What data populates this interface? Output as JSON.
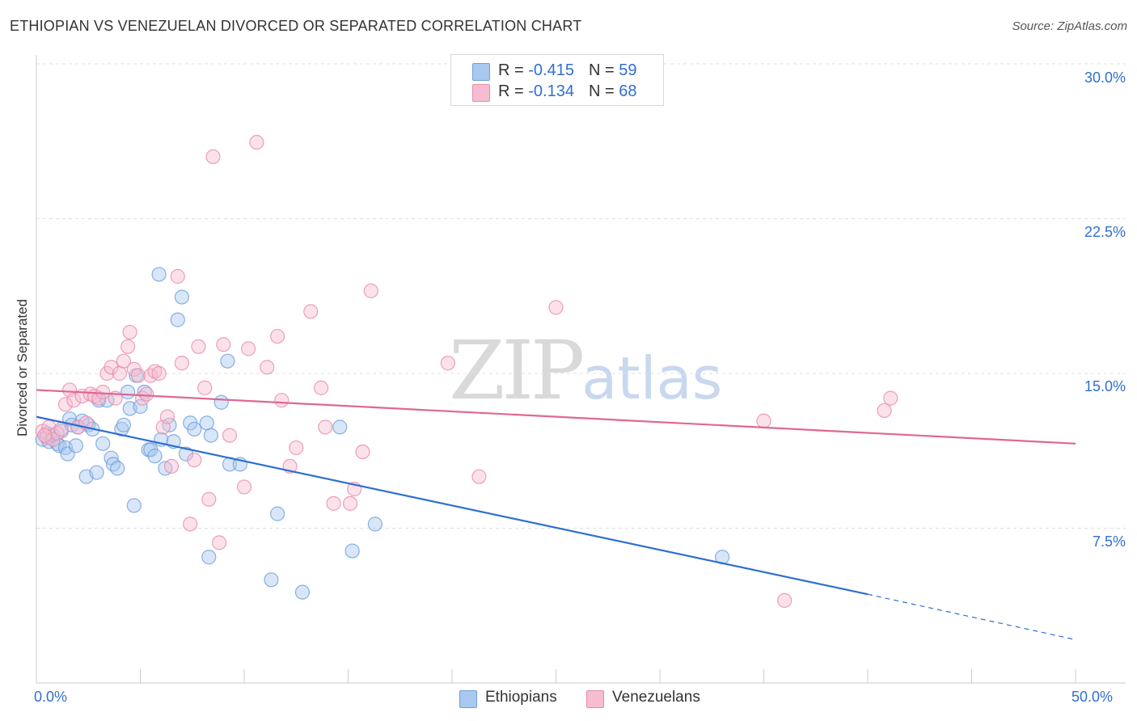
{
  "header": {
    "title": "ETHIOPIAN VS VENEZUELAN DIVORCED OR SEPARATED CORRELATION CHART",
    "source": "Source: ZipAtlas.com"
  },
  "watermark": {
    "zip": "ZIP",
    "atlas": "atlas"
  },
  "legend": {
    "rows": [
      {
        "r_label": "R = ",
        "r_value": "-0.415",
        "n_label": "N = ",
        "n_value": "59",
        "color": "#a9c8f0",
        "border": "#6d9fdc"
      },
      {
        "r_label": "R = ",
        "r_value": "-0.134",
        "n_label": "N = ",
        "n_value": "68",
        "color": "#f6bcd0",
        "border": "#e88aab"
      }
    ]
  },
  "bottom_legend": [
    {
      "label": "Ethiopians",
      "color": "#a9c8f0",
      "border": "#6d9fdc"
    },
    {
      "label": "Venezuelans",
      "color": "#f6bcd0",
      "border": "#e88aab"
    }
  ],
  "chart_data": {
    "type": "scatter",
    "title": "ETHIOPIAN VS VENEZUELAN DIVORCED OR SEPARATED CORRELATION CHART",
    "xlabel": "",
    "ylabel": "Divorced or Separated",
    "xlim": [
      0,
      50
    ],
    "ylim": [
      0,
      31
    ],
    "x_tick_labels": [
      "0.0%",
      "50.0%"
    ],
    "y_ticks": [
      7.5,
      15.0,
      22.5,
      30.0
    ],
    "y_tick_labels": [
      "7.5%",
      "15.0%",
      "22.5%",
      "30.0%"
    ],
    "grid": "horizontal dashed",
    "legend_position": "top-center",
    "series": [
      {
        "name": "Ethiopians",
        "color": "#6d9fdc",
        "fill": "#a9c8f0",
        "trend": {
          "x": [
            0,
            40
          ],
          "y": [
            12.9,
            4.3
          ],
          "dashed_to": [
            50,
            2.1
          ],
          "color": "#2f6fd1"
        },
        "points": [
          [
            0.3,
            11.8
          ],
          [
            0.5,
            12.1
          ],
          [
            0.6,
            11.7
          ],
          [
            0.8,
            12.0
          ],
          [
            1.0,
            11.6
          ],
          [
            1.1,
            11.5
          ],
          [
            1.2,
            12.2
          ],
          [
            1.4,
            11.4
          ],
          [
            1.5,
            11.1
          ],
          [
            1.6,
            12.8
          ],
          [
            1.7,
            12.5
          ],
          [
            1.9,
            11.5
          ],
          [
            2.0,
            12.4
          ],
          [
            2.2,
            12.7
          ],
          [
            2.4,
            10.0
          ],
          [
            2.5,
            12.5
          ],
          [
            2.7,
            12.3
          ],
          [
            2.9,
            10.2
          ],
          [
            3.0,
            13.7
          ],
          [
            3.2,
            11.6
          ],
          [
            3.4,
            13.7
          ],
          [
            3.6,
            10.9
          ],
          [
            3.7,
            10.6
          ],
          [
            3.9,
            10.4
          ],
          [
            4.1,
            12.3
          ],
          [
            4.2,
            12.5
          ],
          [
            4.4,
            14.1
          ],
          [
            4.5,
            13.3
          ],
          [
            4.7,
            8.6
          ],
          [
            4.8,
            14.9
          ],
          [
            5.0,
            13.4
          ],
          [
            5.2,
            14.1
          ],
          [
            5.4,
            11.3
          ],
          [
            5.5,
            11.3
          ],
          [
            5.7,
            11.0
          ],
          [
            5.9,
            19.8
          ],
          [
            6.0,
            11.8
          ],
          [
            6.2,
            10.4
          ],
          [
            6.4,
            12.5
          ],
          [
            6.6,
            11.7
          ],
          [
            6.8,
            17.6
          ],
          [
            7.0,
            18.7
          ],
          [
            7.2,
            11.1
          ],
          [
            7.4,
            12.6
          ],
          [
            7.6,
            12.3
          ],
          [
            8.2,
            12.6
          ],
          [
            8.3,
            6.1
          ],
          [
            8.4,
            12.0
          ],
          [
            8.9,
            13.6
          ],
          [
            9.2,
            15.6
          ],
          [
            9.3,
            10.6
          ],
          [
            9.8,
            10.6
          ],
          [
            11.3,
            5.0
          ],
          [
            11.6,
            8.2
          ],
          [
            12.8,
            4.4
          ],
          [
            14.6,
            12.4
          ],
          [
            15.2,
            6.4
          ],
          [
            16.3,
            7.7
          ],
          [
            33.0,
            6.1
          ]
        ]
      },
      {
        "name": "Venezuelans",
        "color": "#e88aab",
        "fill": "#f6bcd0",
        "trend": {
          "x": [
            0,
            50
          ],
          "y": [
            14.2,
            11.6
          ],
          "color": "#e06795"
        },
        "points": [
          [
            0.3,
            12.2
          ],
          [
            0.5,
            11.9
          ],
          [
            0.6,
            12.4
          ],
          [
            0.8,
            11.8
          ],
          [
            1.0,
            12.1
          ],
          [
            1.2,
            12.3
          ],
          [
            1.4,
            13.5
          ],
          [
            1.6,
            14.2
          ],
          [
            1.8,
            13.7
          ],
          [
            2.0,
            12.4
          ],
          [
            2.2,
            13.9
          ],
          [
            2.4,
            12.6
          ],
          [
            2.6,
            14.0
          ],
          [
            2.8,
            13.9
          ],
          [
            3.0,
            13.8
          ],
          [
            3.2,
            14.1
          ],
          [
            3.4,
            15.0
          ],
          [
            3.6,
            15.3
          ],
          [
            3.8,
            13.8
          ],
          [
            4.0,
            15.0
          ],
          [
            4.2,
            15.6
          ],
          [
            4.4,
            16.3
          ],
          [
            4.5,
            17.0
          ],
          [
            4.7,
            15.2
          ],
          [
            4.9,
            14.9
          ],
          [
            5.1,
            13.8
          ],
          [
            5.3,
            14.0
          ],
          [
            5.5,
            14.9
          ],
          [
            5.7,
            15.1
          ],
          [
            5.9,
            15.0
          ],
          [
            6.1,
            12.4
          ],
          [
            6.3,
            12.9
          ],
          [
            6.5,
            10.5
          ],
          [
            6.8,
            19.7
          ],
          [
            7.0,
            15.5
          ],
          [
            7.4,
            7.7
          ],
          [
            7.6,
            10.8
          ],
          [
            7.8,
            16.3
          ],
          [
            8.1,
            14.3
          ],
          [
            8.3,
            8.9
          ],
          [
            8.5,
            25.5
          ],
          [
            8.8,
            6.8
          ],
          [
            9.0,
            16.4
          ],
          [
            9.3,
            12.0
          ],
          [
            10.0,
            9.5
          ],
          [
            10.2,
            16.2
          ],
          [
            10.6,
            26.2
          ],
          [
            11.1,
            15.3
          ],
          [
            11.6,
            16.8
          ],
          [
            11.8,
            13.7
          ],
          [
            12.2,
            10.5
          ],
          [
            12.5,
            11.4
          ],
          [
            13.2,
            18.0
          ],
          [
            13.7,
            14.3
          ],
          [
            13.9,
            12.4
          ],
          [
            14.3,
            8.7
          ],
          [
            15.1,
            8.7
          ],
          [
            15.3,
            9.4
          ],
          [
            15.7,
            11.2
          ],
          [
            16.1,
            19.0
          ],
          [
            19.8,
            15.5
          ],
          [
            21.3,
            10.0
          ],
          [
            25.0,
            18.2
          ],
          [
            35.0,
            12.7
          ],
          [
            36.0,
            4.0
          ],
          [
            40.8,
            13.2
          ],
          [
            41.1,
            13.8
          ],
          [
            0.4,
            12.0
          ]
        ]
      }
    ]
  }
}
